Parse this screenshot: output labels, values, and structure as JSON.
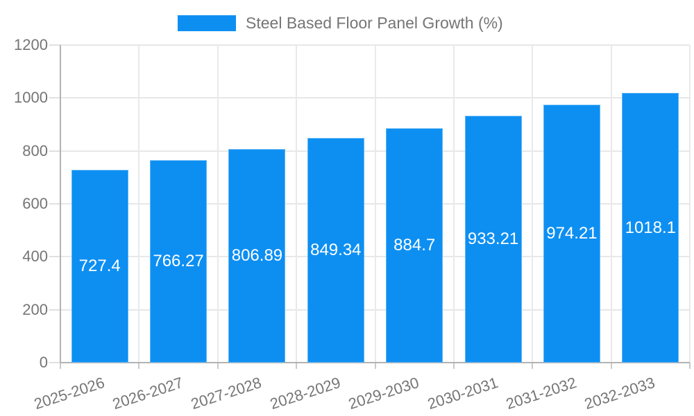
{
  "page": {
    "background_color": "#ffffff"
  },
  "legend": {
    "label": "Steel Based Floor Panel Growth (%)",
    "swatch_color": "#0d8ff2",
    "position": "top"
  },
  "chart_data": {
    "type": "bar",
    "title": "Steel Based Floor Panel Growth (%)",
    "categories": [
      "2025-2026",
      "2026-2027",
      "2027-2028",
      "2028-2029",
      "2029-2030",
      "2030-2031",
      "2031-2032",
      "2032-2033"
    ],
    "series": [
      {
        "name": "Steel Based Floor Panel Growth (%)",
        "values": [
          727.4,
          766.27,
          806.89,
          849.34,
          884.7,
          933.21,
          974.21,
          1018.1
        ],
        "value_labels": [
          "727.4",
          "766.27",
          "806.89",
          "849.34",
          "884.7",
          "933.21",
          "974.21",
          "1018.1"
        ],
        "color": "#0d8ff2"
      }
    ],
    "xlabel": "",
    "ylabel": "",
    "ylim": [
      0,
      1200
    ],
    "yticks": [
      0,
      200,
      400,
      600,
      800,
      1000,
      1200
    ],
    "ytick_labels": [
      "0",
      "200",
      "400",
      "600",
      "800",
      "1000",
      "1200"
    ],
    "grid": true,
    "legend_position": "top",
    "annotations_position": "inside-center",
    "annotation_text_color": "#ffffff",
    "axis_text_color": "#757575",
    "gridline_color": "#e7e7e7",
    "axis_line_color": "#b2b2b2",
    "x_label_rotation_deg": -18
  }
}
